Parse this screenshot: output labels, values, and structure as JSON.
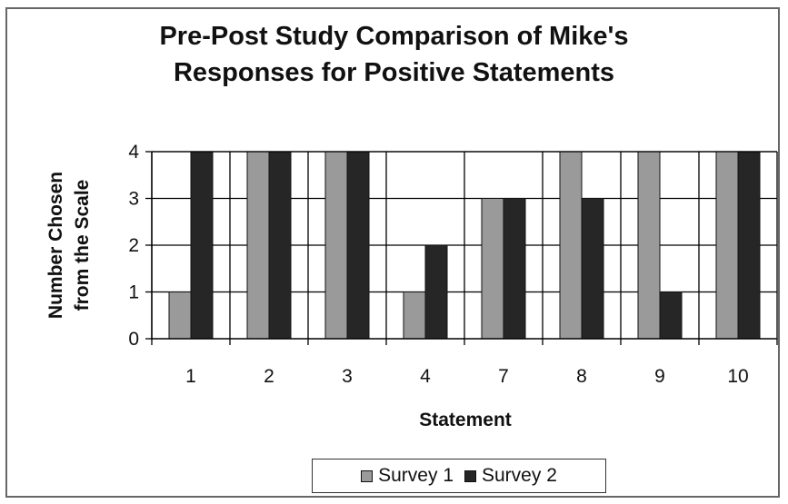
{
  "chart_data": {
    "type": "bar",
    "title_lines": [
      "Pre-Post Study Comparison of Mike's",
      "Responses for Positive Statements"
    ],
    "xlabel": "Statement",
    "ylabel_lines": [
      "Number Chosen",
      "from the Scale"
    ],
    "categories": [
      "1",
      "2",
      "3",
      "4",
      "7",
      "8",
      "9",
      "10"
    ],
    "ylim": [
      0,
      4
    ],
    "yticks": [
      0,
      1,
      2,
      3,
      4
    ],
    "grid": true,
    "legend_position": "bottom",
    "series": [
      {
        "name": "Survey 1",
        "values": [
          1,
          4,
          4,
          1,
          3,
          4,
          4,
          4
        ],
        "color": "#9a9a9a"
      },
      {
        "name": "Survey 2",
        "values": [
          4,
          4,
          4,
          2,
          3,
          3,
          1,
          4
        ],
        "color": "#262626"
      }
    ]
  }
}
